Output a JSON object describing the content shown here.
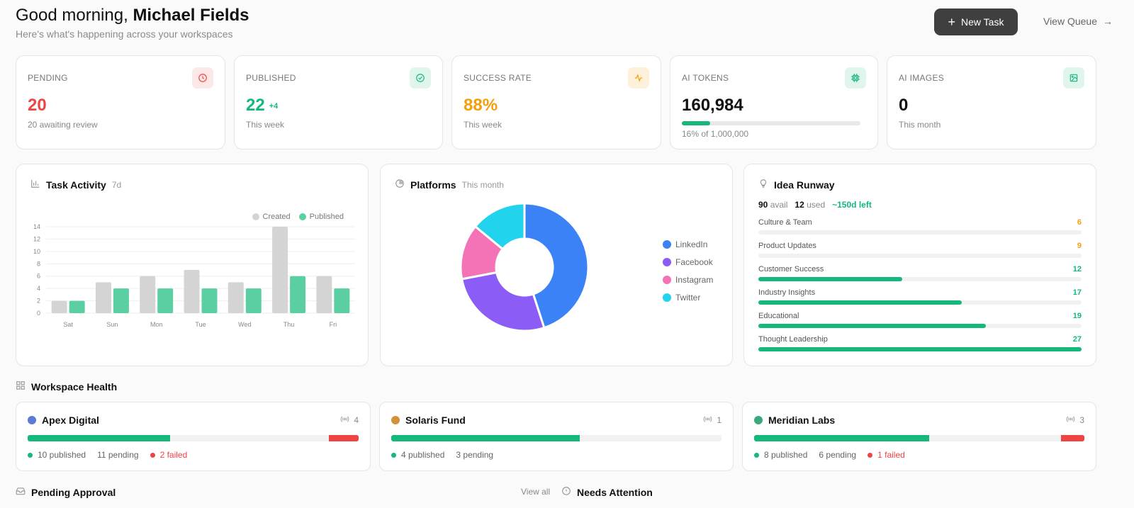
{
  "header": {
    "greeting_prefix": "Good morning,",
    "user_name": "Michael Fields",
    "subtitle": "Here's what's happening across your workspaces",
    "new_task_label": "New Task",
    "view_queue_label": "View Queue"
  },
  "stats": {
    "pending": {
      "label": "PENDING",
      "value": "20",
      "sub": "20 awaiting review",
      "color": "#ef4444",
      "icon": "clock-icon"
    },
    "published": {
      "label": "PUBLISHED",
      "value": "22",
      "delta": "+4",
      "sub": "This week",
      "color": "#14b87a",
      "icon": "check-circle-icon"
    },
    "success": {
      "label": "SUCCESS RATE",
      "value": "88%",
      "sub": "This week",
      "color": "#f59e0b",
      "icon": "activity-icon"
    },
    "tokens": {
      "label": "AI TOKENS",
      "value": "160,984",
      "progress": 0.16,
      "sub": "16% of 1,000,000",
      "color": "#111111",
      "icon": "cpu-icon"
    },
    "images": {
      "label": "AI IMAGES",
      "value": "0",
      "sub": "This month",
      "color": "#111111",
      "icon": "image-icon"
    }
  },
  "task_activity": {
    "title": "Task Activity",
    "range": "7d",
    "legend_created": "Created",
    "legend_published": "Published"
  },
  "platforms": {
    "title": "Platforms",
    "range": "This month",
    "legend": [
      "LinkedIn",
      "Facebook",
      "Instagram",
      "Twitter"
    ]
  },
  "idea_runway": {
    "title": "Idea Runway",
    "avail_num": "90",
    "avail_label": "avail",
    "used_num": "12",
    "used_label": "used",
    "days_left": "~150d left",
    "rows": [
      {
        "name": "Culture & Team",
        "count": "6",
        "value": 6,
        "color": "#f59e0b"
      },
      {
        "name": "Product Updates",
        "count": "9",
        "value": 9,
        "color": "#f59e0b"
      },
      {
        "name": "Customer Success",
        "count": "12",
        "value": 12,
        "color": "#14b87a"
      },
      {
        "name": "Industry Insights",
        "count": "17",
        "value": 17,
        "color": "#14b87a"
      },
      {
        "name": "Educational",
        "count": "19",
        "value": 19,
        "color": "#14b87a"
      },
      {
        "name": "Thought Leadership",
        "count": "27",
        "value": 27,
        "color": "#14b87a"
      }
    ]
  },
  "workspace_health": {
    "title": "Workspace Health",
    "workspaces": [
      {
        "name": "Apex Digital",
        "count": "4",
        "dot_color": "#5b7bd5",
        "published": "10 published",
        "pending": "11 pending",
        "failed": "2 failed",
        "published_frac": 0.43,
        "failed_frac": 0.09
      },
      {
        "name": "Solaris Fund",
        "count": "1",
        "dot_color": "#d4923a",
        "published": "4 published",
        "pending": "3 pending",
        "failed": "",
        "published_frac": 0.57,
        "failed_frac": 0
      },
      {
        "name": "Meridian Labs",
        "count": "3",
        "dot_color": "#3aa87a",
        "published": "8 published",
        "pending": "6 pending",
        "failed": "1 failed",
        "published_frac": 0.53,
        "failed_frac": 0.07
      }
    ]
  },
  "bottom": {
    "pending_approval": "Pending Approval",
    "view_all": "View all",
    "needs_attention": "Needs Attention"
  },
  "chart_data": {
    "type": "bar",
    "categories": [
      "Sat",
      "Sun",
      "Mon",
      "Tue",
      "Wed",
      "Thu",
      "Fri"
    ],
    "series": [
      {
        "name": "Created",
        "values": [
          2,
          5,
          6,
          7,
          5,
          14,
          6
        ],
        "color": "#d4d4d4"
      },
      {
        "name": "Published",
        "values": [
          2,
          4,
          4,
          4,
          4,
          6,
          4
        ],
        "color": "#5ccfa2"
      }
    ],
    "ylim": [
      0,
      14
    ],
    "yticks": [
      0,
      2,
      4,
      6,
      8,
      10,
      12,
      14
    ],
    "grid": true,
    "legend": "top-right"
  },
  "platforms_chart": {
    "type": "pie",
    "labels": [
      "LinkedIn",
      "Facebook",
      "Instagram",
      "Twitter"
    ],
    "values": [
      45,
      27,
      14,
      14
    ],
    "colors": [
      "#3b82f6",
      "#8b5cf6",
      "#f472b6",
      "#22d3ee"
    ]
  }
}
